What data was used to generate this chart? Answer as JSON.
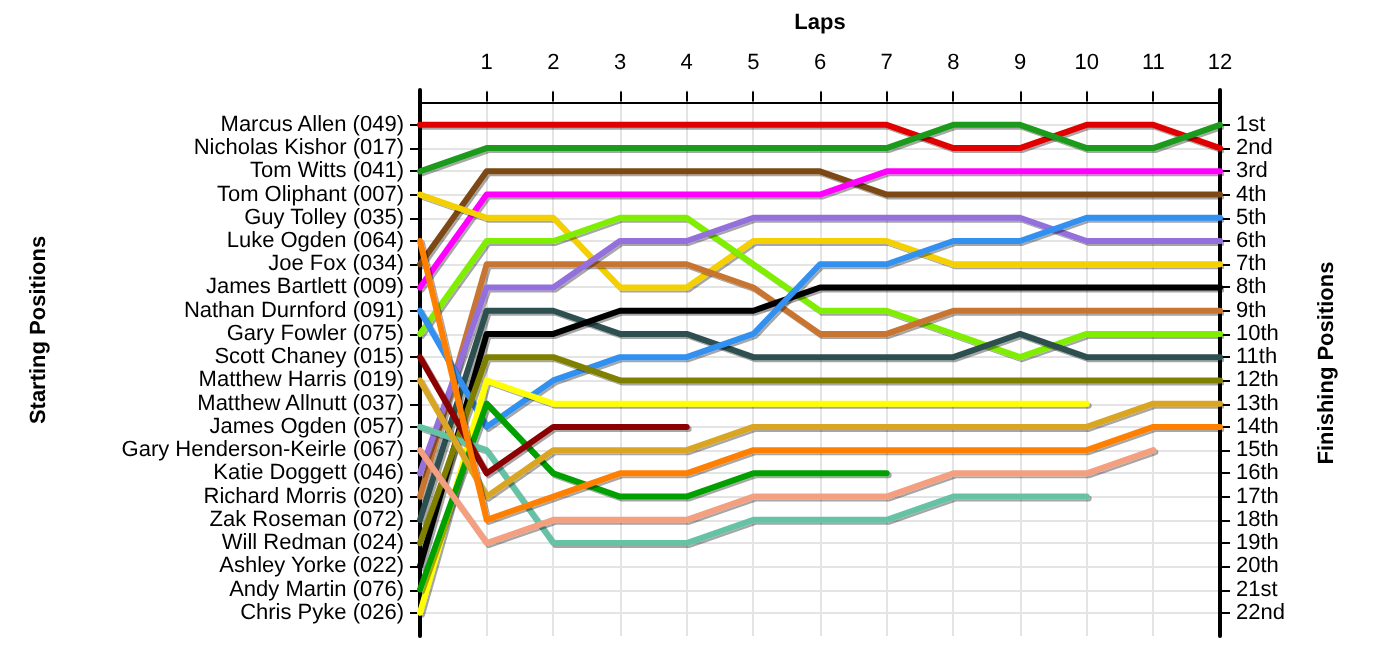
{
  "chart_data": {
    "type": "line",
    "xlabel": "Laps",
    "ylabel": "Finishing Positions",
    "annotations": [
      "Starting Positions"
    ],
    "x": [
      0,
      1,
      2,
      3,
      4,
      5,
      6,
      7,
      8,
      9,
      10,
      11,
      12
    ],
    "xlim": [
      0,
      12
    ],
    "xticks": [
      1,
      2,
      3,
      4,
      5,
      6,
      7,
      8,
      9,
      10,
      11,
      12
    ],
    "y_categories": [
      "Marcus Allen (049)",
      "Nicholas Kishor (017)",
      "Tom Witts (041)",
      "Tom Oliphant (007)",
      "Guy Tolley (035)",
      "Luke Ogden (064)",
      "Joe Fox (034)",
      "James Bartlett (009)",
      "Nathan Durnford (091)",
      "Gary Fowler (075)",
      "Scott Chaney (015)",
      "Matthew Harris (019)",
      "Matthew Allnutt (037)",
      "James Ogden (057)",
      "Gary Henderson-Keirle (067)",
      "Katie Doggett (046)",
      "Richard Morris (020)",
      "Zak Roseman (072)",
      "Will Redman (024)",
      "Ashley Yorke (022)",
      "Andy Martin (076)",
      "Chris Pyke (026)"
    ],
    "ylim": [
      23,
      -0.5
    ],
    "yticks": [
      {
        "value": 1,
        "label": "1st"
      },
      {
        "value": 2,
        "label": "2nd"
      },
      {
        "value": 3,
        "label": "3rd"
      },
      {
        "value": 4,
        "label": "4th"
      },
      {
        "value": 5,
        "label": "5th"
      },
      {
        "value": 6,
        "label": "6th"
      },
      {
        "value": 7,
        "label": "7th"
      },
      {
        "value": 8,
        "label": "8th"
      },
      {
        "value": 9,
        "label": "9th"
      },
      {
        "value": 10,
        "label": "10th"
      },
      {
        "value": 11,
        "label": "11th"
      },
      {
        "value": 12,
        "label": "12th"
      },
      {
        "value": 13,
        "label": "13th"
      },
      {
        "value": 14,
        "label": "14th"
      },
      {
        "value": 15,
        "label": "15th"
      },
      {
        "value": 16,
        "label": "16th"
      },
      {
        "value": 17,
        "label": "17th"
      },
      {
        "value": 18,
        "label": "18th"
      },
      {
        "value": 19,
        "label": "19th"
      },
      {
        "value": 20,
        "label": "20th"
      },
      {
        "value": 21,
        "label": "21st"
      },
      {
        "value": 22,
        "label": "22nd"
      }
    ],
    "grid": true,
    "marker": "none",
    "line_style": "solid",
    "series": [
      {
        "color": "#e00000",
        "values": [
          1,
          1,
          1,
          1,
          1,
          1,
          1,
          1,
          2,
          2,
          1,
          1,
          2
        ]
      },
      {
        "color": "#1a9a1a",
        "values": [
          3,
          2,
          2,
          2,
          2,
          2,
          2,
          2,
          1,
          1,
          2,
          2,
          1
        ]
      },
      {
        "color": "#7b4a12",
        "values": [
          7,
          3,
          3,
          3,
          3,
          3,
          3,
          4,
          4,
          4,
          4,
          4,
          4
        ]
      },
      {
        "color": "#ff00ff",
        "values": [
          8,
          4,
          4,
          4,
          4,
          4,
          4,
          3,
          3,
          3,
          3,
          3,
          3
        ]
      },
      {
        "color": "#f5d000",
        "values": [
          4,
          5,
          5,
          8,
          8,
          6,
          6,
          6,
          7,
          7,
          7,
          7,
          7
        ]
      },
      {
        "color": "#80ee00",
        "values": [
          10,
          6,
          6,
          5,
          5,
          7,
          9,
          9,
          10,
          11,
          10,
          10,
          10
        ]
      },
      {
        "color": "#c87533",
        "values": [
          17,
          7,
          7,
          7,
          7,
          8,
          10,
          10,
          9,
          9,
          9,
          9,
          9
        ]
      },
      {
        "color": "#9370db",
        "values": [
          16,
          8,
          8,
          6,
          6,
          5,
          5,
          5,
          5,
          5,
          6,
          6,
          6
        ]
      },
      {
        "color": "#2f4f4f",
        "values": [
          18,
          9,
          9,
          10,
          10,
          11,
          11,
          11,
          11,
          10,
          11,
          11,
          11
        ]
      },
      {
        "color": "#000000",
        "values": [
          20,
          10,
          10,
          9,
          9,
          9,
          8,
          8,
          8,
          8,
          8,
          8,
          8
        ]
      },
      {
        "color": "#3090f0",
        "values": [
          9,
          14,
          12,
          11,
          11,
          10,
          7,
          7,
          6,
          6,
          5,
          5,
          5
        ]
      },
      {
        "color": "#808000",
        "values": [
          19,
          11,
          11,
          12,
          12,
          12,
          12,
          12,
          12,
          12,
          12,
          12,
          12
        ]
      },
      {
        "color": "#ffff00",
        "values": [
          22,
          12,
          13,
          13,
          13,
          13,
          13,
          13,
          13,
          13,
          13,
          null,
          null
        ]
      },
      {
        "color": "#00a000",
        "values": [
          21,
          13,
          16,
          17,
          17,
          16,
          16,
          16,
          null,
          null,
          null,
          null,
          null
        ]
      },
      {
        "color": "#66c2a5",
        "values": [
          14,
          15,
          19,
          19,
          19,
          18,
          18,
          18,
          17,
          17,
          17,
          null,
          null
        ]
      },
      {
        "color": "#8b0000",
        "values": [
          11,
          16,
          14,
          14,
          14,
          null,
          null,
          null,
          null,
          null,
          null,
          null,
          null
        ]
      },
      {
        "color": "#daa520",
        "values": [
          12,
          17,
          15,
          15,
          15,
          14,
          14,
          14,
          14,
          14,
          14,
          13,
          13
        ]
      },
      {
        "color": "#ff8000",
        "values": [
          6,
          18,
          17,
          16,
          16,
          15,
          15,
          15,
          15,
          15,
          15,
          14,
          14
        ]
      },
      {
        "color": "#f4a080",
        "values": [
          15,
          19,
          18,
          18,
          18,
          17,
          17,
          17,
          16,
          16,
          16,
          15,
          null
        ]
      }
    ]
  }
}
